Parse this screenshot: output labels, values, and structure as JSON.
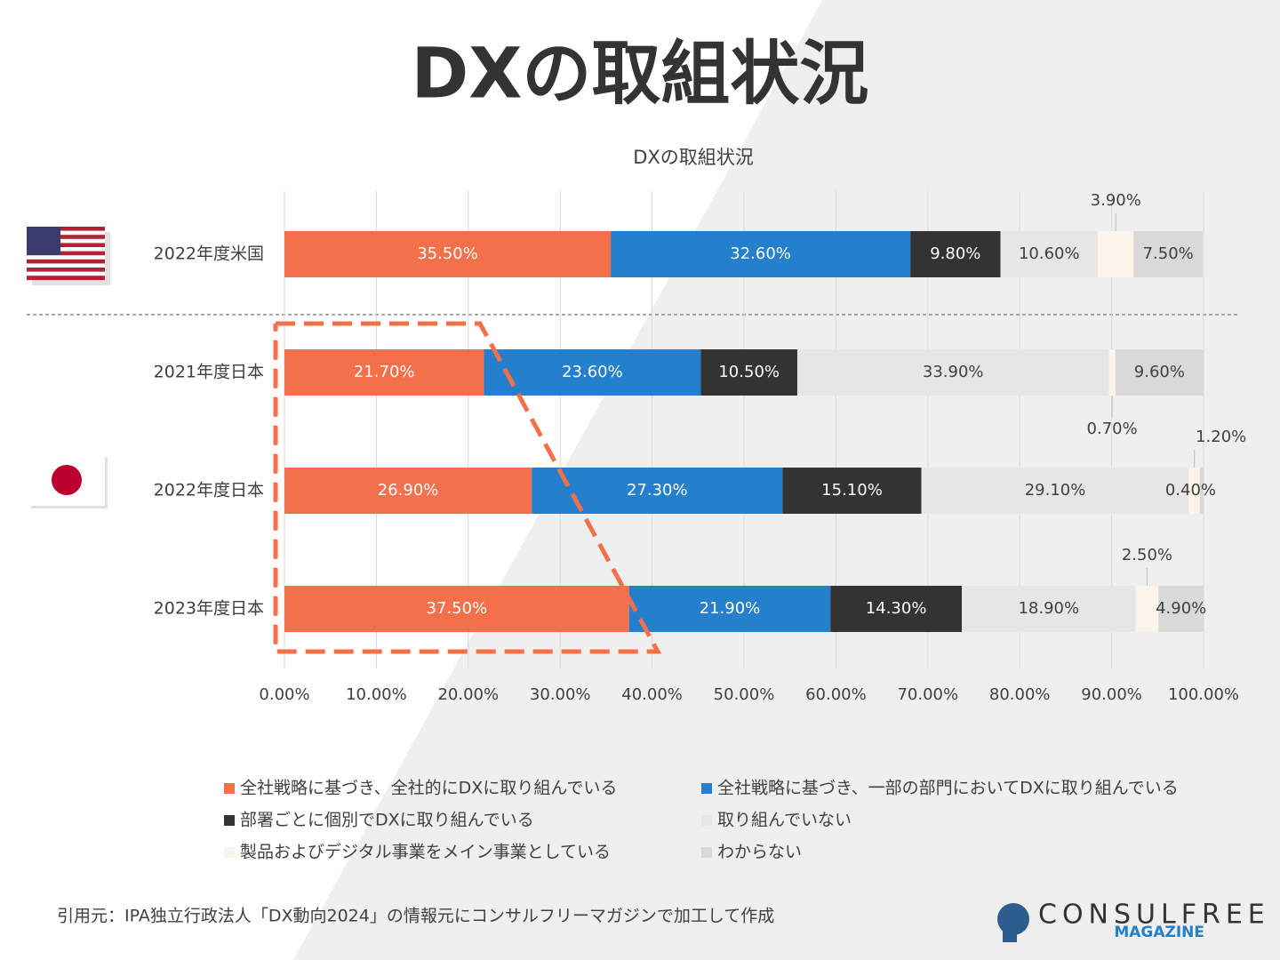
{
  "title": "DXの取組状況",
  "source": "引用元：IPA独立行政法人「DX動向2024」の情報元にコンサルフリーマガジンで加工して作成",
  "logo": {
    "name": "CONSULFREE",
    "sub": "MAGAZINE"
  },
  "chart_data": {
    "type": "stacked-bar-horizontal",
    "title": "DXの取組状況",
    "categories": [
      "2022年度米国",
      "2021年度日本",
      "2022年度日本",
      "2023年度日本"
    ],
    "series": [
      {
        "name": "全社戦略に基づき、全社的にDXに取り組んでいる",
        "color": "#f4704a",
        "values": [
          35.5,
          21.7,
          26.9,
          37.5
        ],
        "value_labels": [
          "35.50%",
          "21.70%",
          "26.90%",
          "37.50%"
        ]
      },
      {
        "name": "全社戦略に基づき、一部の部門においてDXに取り組んでいる",
        "color": "#2480cc",
        "values": [
          32.6,
          23.6,
          27.3,
          21.9
        ],
        "value_labels": [
          "32.60%",
          "23.60%",
          "27.30%",
          "21.90%"
        ]
      },
      {
        "name": "部署ごとに個別でDXに取り組んでいる",
        "color": "#333333",
        "values": [
          9.8,
          10.5,
          15.1,
          14.3
        ],
        "value_labels": [
          "9.80%",
          "10.50%",
          "15.10%",
          "14.30%"
        ]
      },
      {
        "name": "取り組んでいない",
        "color": "#e6e6e6",
        "values": [
          10.6,
          33.9,
          29.1,
          18.9
        ],
        "value_labels": [
          "10.60%",
          "33.90%",
          "29.10%",
          "18.90%"
        ]
      },
      {
        "name": "製品およびデジタル事業をメイン事業としている",
        "color": "#faf4ea",
        "values": [
          3.9,
          0.7,
          1.2,
          2.5
        ],
        "value_labels": [
          "3.90%",
          "0.70%",
          "1.20%",
          "2.50%"
        ]
      },
      {
        "name": "わからない",
        "color": "#d9d9d9",
        "values": [
          7.5,
          9.6,
          0.4,
          4.9
        ],
        "value_labels": [
          "7.50%",
          "9.60%",
          "0.40%",
          "4.90%"
        ]
      }
    ],
    "xlim": [
      0,
      100
    ],
    "xticks": [
      {
        "value": 0,
        "label": "0.00%"
      },
      {
        "value": 10,
        "label": "10.00%"
      },
      {
        "value": 20,
        "label": "20.00%"
      },
      {
        "value": 30,
        "label": "30.00%"
      },
      {
        "value": 40,
        "label": "40.00%"
      },
      {
        "value": 50,
        "label": "50.00%"
      },
      {
        "value": 60,
        "label": "60.00%"
      },
      {
        "value": 70,
        "label": "70.00%"
      },
      {
        "value": 80,
        "label": "80.00%"
      },
      {
        "value": 90,
        "label": "90.00%"
      },
      {
        "value": 100,
        "label": "100.00%"
      }
    ],
    "grid": true
  }
}
